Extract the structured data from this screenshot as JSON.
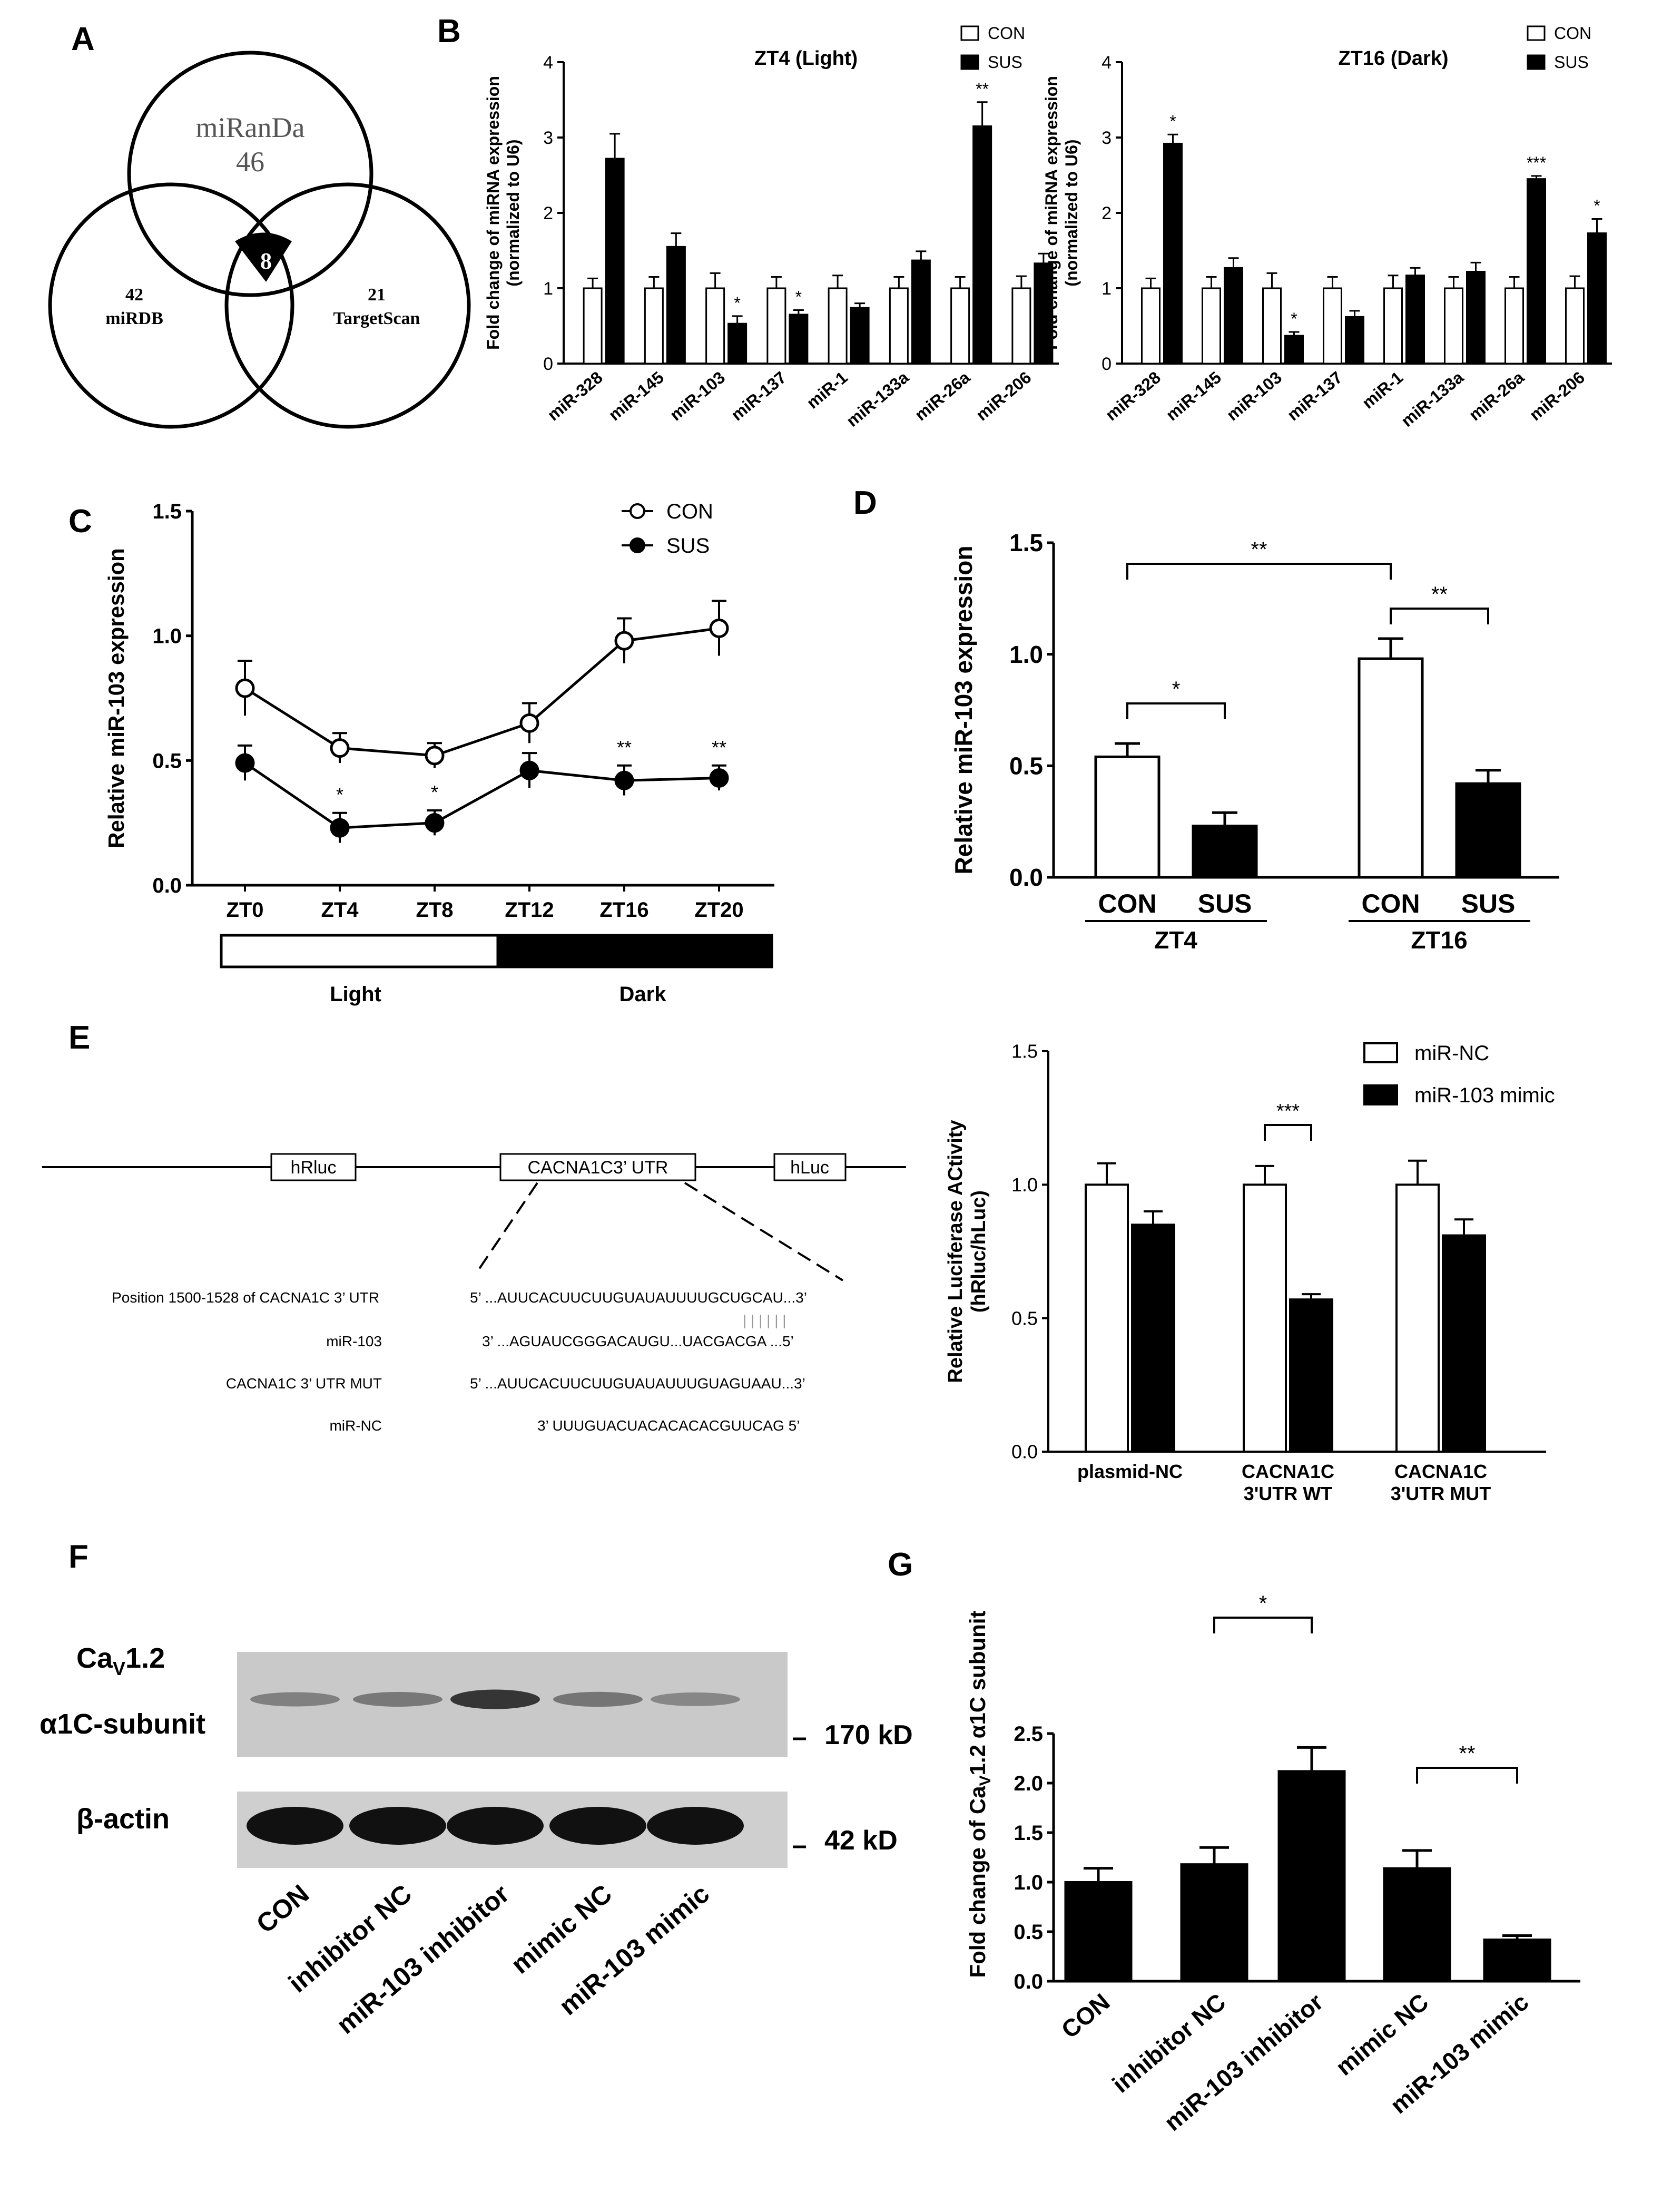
{
  "colors": {
    "ink": "#000000",
    "con": "#ffffff",
    "sus": "#000000",
    "gel_bg": "#c9c9c9",
    "dashed_link": "#999999"
  },
  "panels": {
    "A": "A",
    "B": "B",
    "C": "C",
    "D": "D",
    "E": "E",
    "F": "F",
    "G": "G"
  },
  "venn": {
    "top": {
      "name": "miRanDa",
      "count": "46"
    },
    "left": {
      "name": "miRDB",
      "count": "42"
    },
    "right": {
      "name": "TargetScan",
      "count": "21"
    },
    "center": "8"
  },
  "construct": {
    "hrluc": "hRluc",
    "utr": "CACNA1C3’ UTR",
    "hluc": "hLuc",
    "rows": [
      {
        "label": "Position 1500-1528 of CACNA1C 3’ UTR",
        "seq": "5’ ...AUUCACUUCUUGUAUAUUUUGCUGCAU...3’"
      },
      {
        "label": "miR-103",
        "seq": "3’ ...AGUAUCGGGACAUGU...UACGACGA ...5’"
      },
      {
        "label": "CACNA1C 3’ UTR MUT",
        "seq": "5’ ...AUUCACUUCUUGUAUAUUUGUAGUAAU...3’"
      },
      {
        "label": "miR-NC",
        "seq": "3’ UUUGUACUACACACACGUUCAG 5’"
      }
    ],
    "pairing": "| | | | | |"
  },
  "blot": {
    "target_label_main": "Ca",
    "target_label_sub": "V",
    "target_label_rest": "1.2",
    "target_label_line2": "α1C-subunit",
    "control_label": "β-actin",
    "marker_170": "170 kD",
    "marker_42": "42 kD",
    "lanes": [
      "CON",
      "inhibitor NC",
      "miR-103 inhibitor",
      "mimic NC",
      "miR-103 mimic"
    ],
    "band_intensity_target": [
      0.35,
      0.4,
      0.85,
      0.42,
      0.3
    ]
  },
  "chart_data": [
    {
      "id": "B1",
      "type": "bar",
      "title": "ZT4 (Light)",
      "ylabel": "Fold change of miRNA expression",
      "ylabel2": "(normalized to U6)",
      "ylim": [
        0,
        4
      ],
      "yticks": [
        "0",
        "1",
        "2",
        "3",
        "4"
      ],
      "categories": [
        "miR-328",
        "miR-145",
        "miR-103",
        "miR-137",
        "miR-1",
        "miR-133a",
        "miR-26a",
        "miR-206"
      ],
      "series": [
        {
          "name": "CON",
          "values": [
            1.0,
            1.0,
            1.0,
            1.0,
            1.0,
            1.0,
            1.0,
            1.0
          ],
          "errors": [
            0.13,
            0.15,
            0.2,
            0.15,
            0.17,
            0.15,
            0.15,
            0.16
          ]
        },
        {
          "name": "SUS",
          "values": [
            2.72,
            1.55,
            0.53,
            0.65,
            0.74,
            1.37,
            3.15,
            1.33
          ],
          "errors": [
            0.33,
            0.18,
            0.1,
            0.06,
            0.06,
            0.12,
            0.32,
            0.13
          ]
        }
      ],
      "annotations": [
        "",
        "",
        "*",
        "*",
        "",
        "",
        "**",
        ""
      ],
      "legend": "top-right"
    },
    {
      "id": "B2",
      "type": "bar",
      "title": "ZT16 (Dark)",
      "ylabel": "Fold change of miRNA expression",
      "ylabel2": "(normalized to U6)",
      "ylim": [
        0,
        4
      ],
      "yticks": [
        "0",
        "1",
        "2",
        "3",
        "4"
      ],
      "categories": [
        "miR-328",
        "miR-145",
        "miR-103",
        "miR-137",
        "miR-1",
        "miR-133a",
        "miR-26a",
        "miR-206"
      ],
      "series": [
        {
          "name": "CON",
          "values": [
            1.0,
            1.0,
            1.0,
            1.0,
            1.0,
            1.0,
            1.0,
            1.0
          ],
          "errors": [
            0.13,
            0.15,
            0.2,
            0.15,
            0.17,
            0.15,
            0.15,
            0.16
          ]
        },
        {
          "name": "SUS",
          "values": [
            2.92,
            1.27,
            0.37,
            0.62,
            1.17,
            1.22,
            2.45,
            1.73
          ],
          "errors": [
            0.12,
            0.13,
            0.05,
            0.08,
            0.1,
            0.12,
            0.04,
            0.19
          ]
        }
      ],
      "annotations": [
        "*",
        "",
        "*",
        "",
        "",
        "",
        "***",
        "*"
      ],
      "legend": "top-right"
    },
    {
      "id": "C",
      "type": "line",
      "ylabel": "Relative miR-103 expression",
      "ylim": [
        0,
        1.5
      ],
      "yticks": [
        "0.0",
        "0.5",
        "1.0",
        "1.5"
      ],
      "x": [
        "ZT0",
        "ZT4",
        "ZT8",
        "ZT12",
        "ZT16",
        "ZT20"
      ],
      "series": [
        {
          "name": "CON",
          "values": [
            0.79,
            0.55,
            0.52,
            0.65,
            0.98,
            1.03
          ],
          "errors": [
            0.11,
            0.06,
            0.05,
            0.08,
            0.09,
            0.11
          ]
        },
        {
          "name": "SUS",
          "values": [
            0.49,
            0.23,
            0.25,
            0.46,
            0.42,
            0.43
          ],
          "errors": [
            0.07,
            0.06,
            0.05,
            0.07,
            0.06,
            0.05
          ]
        }
      ],
      "annotations": [
        "",
        "*",
        "*",
        "",
        "**",
        "**"
      ],
      "bar_light": "Light",
      "bar_dark": "Dark",
      "legend": "top-right"
    },
    {
      "id": "D",
      "type": "bar",
      "ylabel": "Relative miR-103 expression",
      "ylim": [
        0,
        1.5
      ],
      "yticks": [
        "0.0",
        "0.5",
        "1.0",
        "1.5"
      ],
      "groups": [
        "ZT4",
        "ZT16"
      ],
      "categories": [
        "CON",
        "SUS",
        "CON",
        "SUS"
      ],
      "values": [
        0.54,
        0.23,
        0.98,
        0.42
      ],
      "errors": [
        0.06,
        0.06,
        0.09,
        0.06
      ],
      "brackets": [
        "*",
        "**",
        "**"
      ]
    },
    {
      "id": "E",
      "type": "bar",
      "ylabel": "Relative Luciferase ACtivity",
      "ylabel2": "(hRluc/hLuc)",
      "ylim": [
        0,
        1.5
      ],
      "yticks": [
        "0.0",
        "0.5",
        "1.0",
        "1.5"
      ],
      "categories": [
        [
          "plasmid-NC"
        ],
        [
          "CACNA1C",
          "3'UTR WT"
        ],
        [
          "CACNA1C",
          "3'UTR MUT"
        ]
      ],
      "series": [
        {
          "name": "miR-NC",
          "values": [
            1.0,
            1.0,
            1.0
          ],
          "errors": [
            0.08,
            0.07,
            0.09
          ]
        },
        {
          "name": "miR-103 mimic",
          "values": [
            0.85,
            0.57,
            0.81
          ],
          "errors": [
            0.05,
            0.02,
            0.06
          ]
        }
      ],
      "brackets": [
        "***"
      ],
      "legend": "top-right"
    },
    {
      "id": "G",
      "type": "bar",
      "ylabel_pre": "Fold change of Ca",
      "ylabel_sub": "V",
      "ylabel_post": "1.2 α1C subunit",
      "ylim": [
        0,
        2.5
      ],
      "yticks": [
        "0.0",
        "0.5",
        "1.0",
        "1.5",
        "2.0",
        "2.5"
      ],
      "categories": [
        "CON",
        "inhibitor NC",
        "miR-103 inhibitor",
        "mimic NC",
        "miR-103 mimic"
      ],
      "values": [
        1.0,
        1.18,
        2.12,
        1.14,
        0.42
      ],
      "errors": [
        0.14,
        0.17,
        0.24,
        0.18,
        0.04
      ],
      "brackets": [
        "*",
        "**"
      ]
    }
  ]
}
